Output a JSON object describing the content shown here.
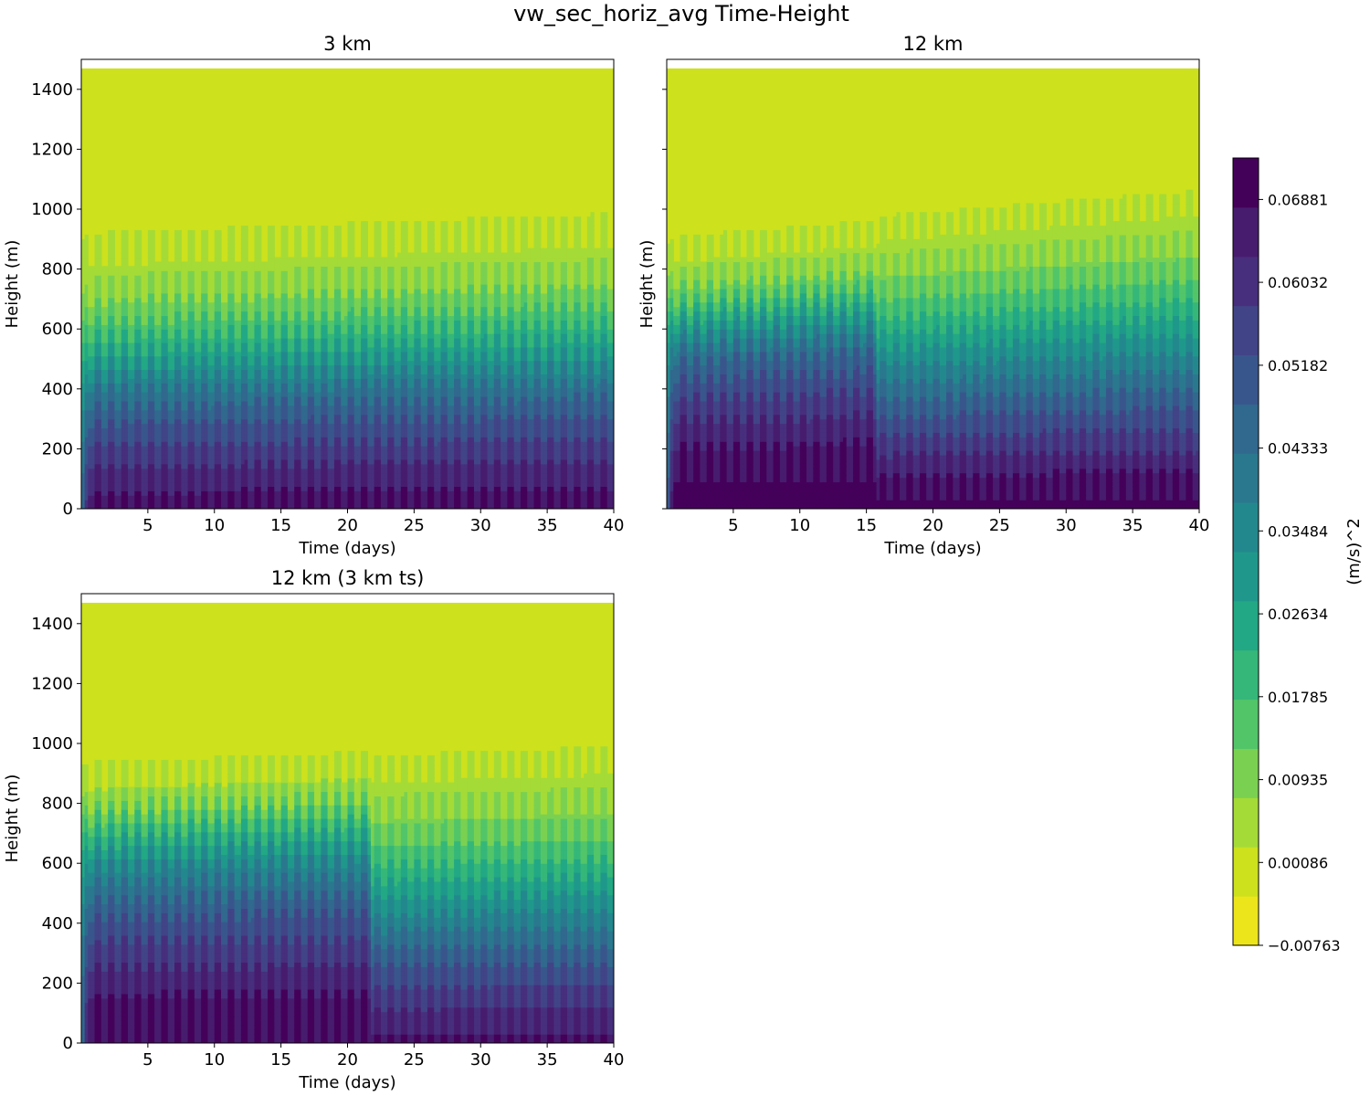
{
  "figure": {
    "title": "vw_sec_horiz_avg Time-Height"
  },
  "colorbar": {
    "label": "(m/s)^2",
    "levels": [
      -0.00763,
      -0.00338,
      0.00086,
      0.0051,
      0.00935,
      0.0136,
      0.01785,
      0.0221,
      0.02634,
      0.03059,
      0.03484,
      0.03909,
      0.04333,
      0.04758,
      0.05182,
      0.05607,
      0.06032,
      0.06457,
      0.06881,
      0.07306
    ],
    "tick_labels": [
      "−0.00763",
      "0.00086",
      "0.00935",
      "0.01785",
      "0.02634",
      "0.03484",
      "0.04333",
      "0.05182",
      "0.06032",
      "0.06881"
    ],
    "colors": [
      "#ede51b",
      "#cde11d",
      "#a5db36",
      "#7ad151",
      "#52c569",
      "#35b779",
      "#22a884",
      "#1f988b",
      "#23888e",
      "#2a788e",
      "#31688e",
      "#39568c",
      "#414487",
      "#472f7d",
      "#471c6e",
      "#44015a"
    ]
  },
  "chart_data": [
    {
      "type": "heatmap",
      "title": "3 km",
      "xlabel": "Time (days)",
      "ylabel": "Height (m)",
      "xlim": [
        0,
        40
      ],
      "ylim": [
        0,
        1500
      ],
      "x_ticks": [
        5,
        10,
        15,
        20,
        25,
        30,
        35,
        40
      ],
      "y_ticks": [
        0,
        200,
        400,
        600,
        800,
        1000,
        1200,
        1400
      ],
      "y_ticklabels_shown": true,
      "data_top_height": 1470,
      "profile_heights": [
        0,
        100,
        200,
        300,
        400,
        500,
        600,
        700,
        800,
        900,
        1000,
        1470
      ],
      "segments": [
        {
          "t_start": 0,
          "t_end": 40,
          "values": [
            0.056,
            0.052,
            0.046,
            0.04,
            0.032,
            0.022,
            0.013,
            0.006,
            0.002,
            0.0,
            0.0,
            0.0
          ]
        }
      ],
      "boundary_layer_top": {
        "base": 790,
        "amplitude": 70,
        "period_days": 1,
        "trend_per_day": 1.5
      }
    },
    {
      "type": "heatmap",
      "title": "12 km",
      "xlabel": "Time (days)",
      "ylabel": "Height (m)",
      "xlim": [
        0,
        40
      ],
      "ylim": [
        0,
        1500
      ],
      "x_ticks": [
        5,
        10,
        15,
        20,
        25,
        30,
        35,
        40
      ],
      "y_ticks": [
        0,
        200,
        400,
        600,
        800,
        1000,
        1200,
        1400
      ],
      "y_ticklabels_shown": false,
      "data_top_height": 1470,
      "profile_heights": [
        0,
        100,
        200,
        300,
        400,
        500,
        600,
        700,
        800,
        900,
        1000,
        1470
      ],
      "segments": [
        {
          "t_start": 0,
          "t_end": 15.8,
          "values": [
            0.062,
            0.058,
            0.054,
            0.049,
            0.043,
            0.036,
            0.024,
            0.01,
            0.002,
            0.0,
            0.0,
            0.0
          ]
        },
        {
          "t_start": 15.8,
          "t_end": 40,
          "values": [
            0.06,
            0.054,
            0.047,
            0.04,
            0.032,
            0.024,
            0.015,
            0.008,
            0.003,
            0.0,
            0.0,
            0.0
          ]
        }
      ],
      "boundary_layer_top": {
        "base": 740,
        "amplitude": 50,
        "period_days": 1,
        "trend_per_day": 3
      }
    },
    {
      "type": "heatmap",
      "title": "12 km (3 km ts)",
      "xlabel": "Time (days)",
      "ylabel": "Height (m)",
      "xlim": [
        0,
        40
      ],
      "ylim": [
        0,
        1500
      ],
      "x_ticks": [
        5,
        10,
        15,
        20,
        25,
        30,
        35,
        40
      ],
      "y_ticks": [
        0,
        200,
        400,
        600,
        800,
        1000,
        1200,
        1400
      ],
      "y_ticklabels_shown": true,
      "data_top_height": 1470,
      "profile_heights": [
        0,
        100,
        200,
        300,
        400,
        500,
        600,
        700,
        800,
        900,
        1000,
        1470
      ],
      "segments": [
        {
          "t_start": 0,
          "t_end": 21.8,
          "values": [
            0.058,
            0.056,
            0.052,
            0.047,
            0.042,
            0.035,
            0.027,
            0.016,
            0.005,
            0.0,
            0.0,
            0.0
          ]
        },
        {
          "t_start": 21.8,
          "t_end": 40,
          "values": [
            0.055,
            0.05,
            0.044,
            0.037,
            0.029,
            0.021,
            0.013,
            0.007,
            0.003,
            0.0,
            0.0,
            0.0
          ]
        }
      ],
      "boundary_layer_top": {
        "base": 820,
        "amplitude": 60,
        "period_days": 1,
        "trend_per_day": 1.5
      }
    }
  ]
}
